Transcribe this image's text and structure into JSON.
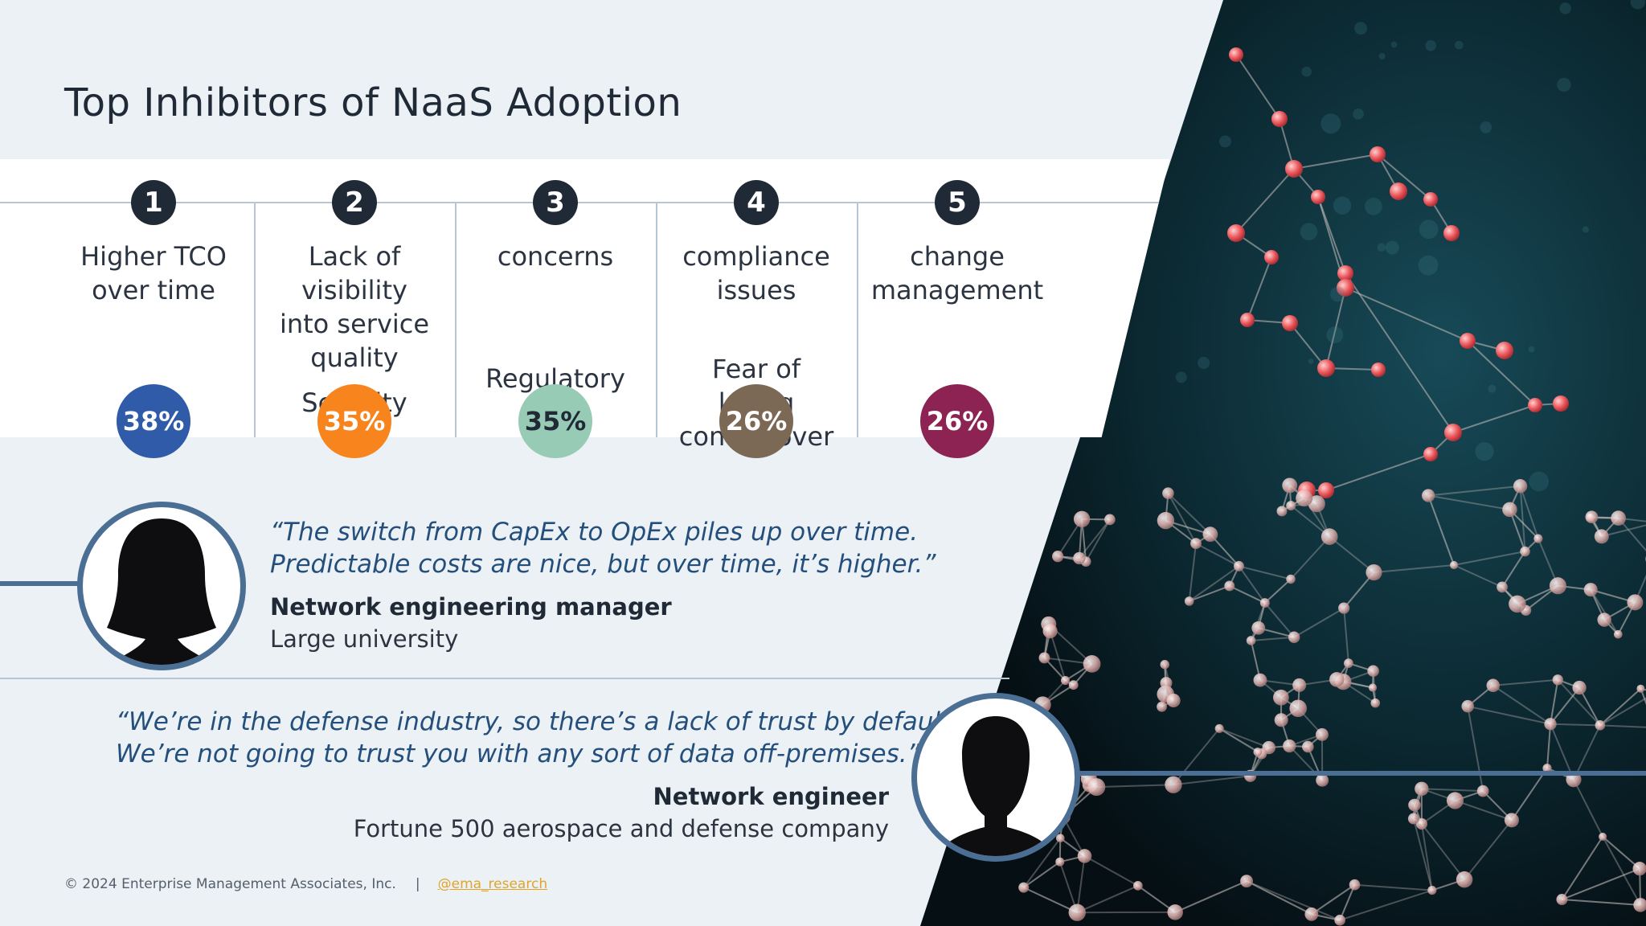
{
  "slide": {
    "title": "Top Inhibitors of NaaS Adoption"
  },
  "inhibitors": [
    {
      "rank": "1",
      "label_top": "Higher TCO over time",
      "label_low": "",
      "percent": "38%",
      "color": "#2f5ba8"
    },
    {
      "rank": "2",
      "label_top": "Lack of visibility into service quality",
      "label_low": "Security",
      "percent": "35%",
      "color": "#f7841d"
    },
    {
      "rank": "3",
      "label_top": "concerns",
      "label_low": "Regulatory",
      "percent": "35%",
      "color": "#98cbb5"
    },
    {
      "rank": "4",
      "label_top": "compliance issues",
      "label_low": "Fear of losing control over",
      "percent": "26%",
      "color": "#7b6855"
    },
    {
      "rank": "5",
      "label_top": "change management",
      "label_low": "",
      "percent": "26%",
      "color": "#8d2353"
    }
  ],
  "testimonials": [
    {
      "quote_line1": "“The switch from CapEx to OpEx piles up over time.",
      "quote_line2": "Predictable costs are nice, but over time, it’s higher.”",
      "role": "Network engineering manager",
      "org": "Large university",
      "avatar_icon": "female-silhouette-icon"
    },
    {
      "quote_line1": "“We’re in the defense industry, so there’s a lack of trust by default.",
      "quote_line2": "We’re not going to trust you with any sort of data off-premises.”",
      "role": "Network engineer",
      "org": "Fortune 500 aerospace and defense company",
      "avatar_icon": "male-silhouette-icon"
    }
  ],
  "footer": {
    "copyright": "© 2024 Enterprise Management Associates, Inc.",
    "separator": "|",
    "handle": "@ema_research"
  },
  "colors": {
    "background": "#ebf1f4",
    "title_text": "#1f2a36",
    "quote_text": "#244f7c",
    "accent_ring": "#4a6e94",
    "image_panel": "#0b2630"
  },
  "decorative_image": "network-nodes-photo"
}
